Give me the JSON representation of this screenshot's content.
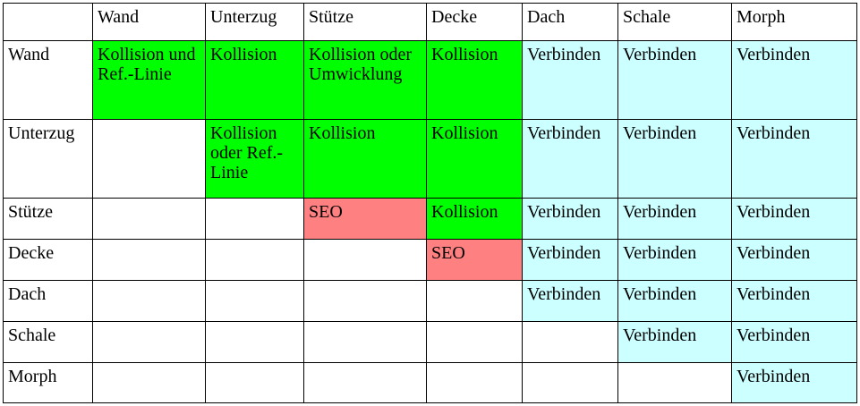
{
  "colors": {
    "collision": "#00ff00",
    "connect": "#ccffff",
    "seo": "#ff8080"
  },
  "header": [
    "",
    "Wand",
    "Unterzug",
    "Stütze",
    "Decke",
    "Dach",
    "Schale",
    "Morph"
  ],
  "rows": [
    {
      "label": "Wand",
      "cells": [
        {
          "text": "Kollision und Ref.-Linie",
          "type": "g"
        },
        {
          "text": "Kollision",
          "type": "g"
        },
        {
          "text": "Kollision oder Umwicklung",
          "type": "g"
        },
        {
          "text": "Kollision",
          "type": "g"
        },
        {
          "text": "Verbinden",
          "type": "c"
        },
        {
          "text": "Verbinden",
          "type": "c"
        },
        {
          "text": "Verbinden",
          "type": "c"
        }
      ]
    },
    {
      "label": "Unterzug",
      "cells": [
        {
          "text": "",
          "type": "w"
        },
        {
          "text": "Kollision oder Ref.-Linie",
          "type": "g"
        },
        {
          "text": "Kollision",
          "type": "g"
        },
        {
          "text": "Kollision",
          "type": "g"
        },
        {
          "text": "Verbinden",
          "type": "c"
        },
        {
          "text": "Verbinden",
          "type": "c"
        },
        {
          "text": "Verbinden",
          "type": "c"
        }
      ]
    },
    {
      "label": "Stütze",
      "cells": [
        {
          "text": "",
          "type": "w"
        },
        {
          "text": "",
          "type": "w"
        },
        {
          "text": "SEO",
          "type": "r"
        },
        {
          "text": "Kollision",
          "type": "g"
        },
        {
          "text": "Verbinden",
          "type": "c"
        },
        {
          "text": "Verbinden",
          "type": "c"
        },
        {
          "text": "Verbinden",
          "type": "c"
        }
      ]
    },
    {
      "label": "Decke",
      "cells": [
        {
          "text": "",
          "type": "w"
        },
        {
          "text": "",
          "type": "w"
        },
        {
          "text": "",
          "type": "w"
        },
        {
          "text": "SEO",
          "type": "r"
        },
        {
          "text": "Verbinden",
          "type": "c"
        },
        {
          "text": "Verbinden",
          "type": "c"
        },
        {
          "text": "Verbinden",
          "type": "c"
        }
      ]
    },
    {
      "label": "Dach",
      "cells": [
        {
          "text": "",
          "type": "w"
        },
        {
          "text": "",
          "type": "w"
        },
        {
          "text": "",
          "type": "w"
        },
        {
          "text": "",
          "type": "w"
        },
        {
          "text": "Verbinden",
          "type": "c"
        },
        {
          "text": "Verbinden",
          "type": "c"
        },
        {
          "text": "Verbinden",
          "type": "c"
        }
      ]
    },
    {
      "label": "Schale",
      "cells": [
        {
          "text": "",
          "type": "w"
        },
        {
          "text": "",
          "type": "w"
        },
        {
          "text": "",
          "type": "w"
        },
        {
          "text": "",
          "type": "w"
        },
        {
          "text": "",
          "type": "w"
        },
        {
          "text": "Verbinden",
          "type": "c"
        },
        {
          "text": "Verbinden",
          "type": "c"
        }
      ]
    },
    {
      "label": "Morph",
      "cells": [
        {
          "text": "",
          "type": "w"
        },
        {
          "text": "",
          "type": "w"
        },
        {
          "text": "",
          "type": "w"
        },
        {
          "text": "",
          "type": "w"
        },
        {
          "text": "",
          "type": "w"
        },
        {
          "text": "",
          "type": "w"
        },
        {
          "text": "Verbinden",
          "type": "c"
        }
      ]
    }
  ]
}
